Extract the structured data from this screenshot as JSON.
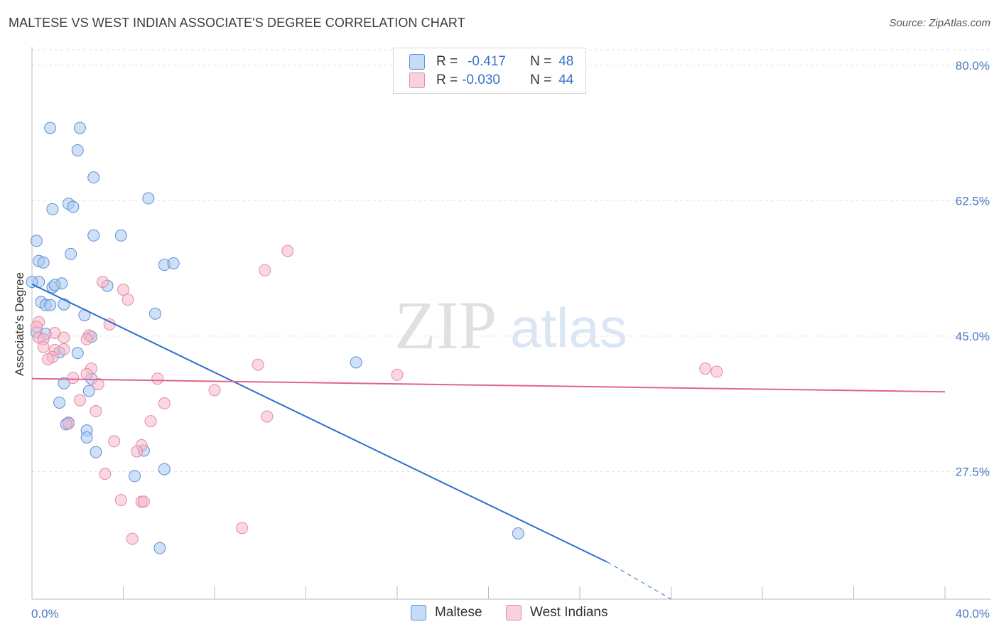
{
  "title": "MALTESE VS WEST INDIAN ASSOCIATE'S DEGREE CORRELATION CHART",
  "source": "Source: ZipAtlas.com",
  "watermark": {
    "zip": "ZIP",
    "atlas": "atlas"
  },
  "legend_top": {
    "rows": [
      {
        "r_label": "R =",
        "r_value": "-0.417",
        "n_label": "N =",
        "n_value": "48",
        "color": "#a9c8f0"
      },
      {
        "r_label": "R =",
        "r_value": "-0.030",
        "n_label": "N =",
        "n_value": "44",
        "color": "#f6b7c9"
      }
    ]
  },
  "legend_bottom": {
    "maltese": "Maltese",
    "west_indians": "West Indians"
  },
  "chart_data": {
    "type": "scatter",
    "title": "MALTESE VS WEST INDIAN ASSOCIATE'S DEGREE CORRELATION CHART",
    "xlabel": "",
    "ylabel": "Associate's Degree",
    "xlim": [
      0,
      40
    ],
    "ylim": [
      11,
      82
    ],
    "x_tick_labels": [
      "0.0%",
      "40.0%"
    ],
    "y_ticks": [
      27.5,
      45.0,
      62.5,
      80.0
    ],
    "y_tick_labels": [
      "27.5%",
      "45.0%",
      "62.5%",
      "80.0%"
    ],
    "grid": true,
    "legend": "top-center",
    "series": [
      {
        "name": "Maltese",
        "color": "#a9c8f0",
        "stroke": "#5b8fd6",
        "line_color": "#2f6fd0",
        "r": -0.417,
        "n": 48,
        "trend": {
          "x": [
            0.0,
            25.2
          ],
          "y": [
            51.7,
            15.8
          ],
          "dashed_to": [
            28.0,
            11.0
          ]
        },
        "points": [
          [
            0.8,
            71.9
          ],
          [
            2.1,
            71.9
          ],
          [
            2.0,
            69.0
          ],
          [
            2.7,
            65.5
          ],
          [
            1.6,
            62.1
          ],
          [
            0.9,
            61.4
          ],
          [
            5.1,
            62.8
          ],
          [
            1.8,
            61.7
          ],
          [
            2.7,
            58.0
          ],
          [
            3.9,
            58.0
          ],
          [
            0.2,
            57.3
          ],
          [
            1.7,
            55.6
          ],
          [
            0.3,
            54.7
          ],
          [
            0.5,
            54.5
          ],
          [
            5.8,
            54.2
          ],
          [
            6.2,
            54.4
          ],
          [
            0.3,
            52.0
          ],
          [
            0.0,
            52.0
          ],
          [
            1.3,
            51.8
          ],
          [
            3.3,
            51.5
          ],
          [
            0.9,
            51.3
          ],
          [
            1.0,
            51.6
          ],
          [
            0.4,
            49.4
          ],
          [
            1.4,
            49.1
          ],
          [
            0.6,
            49.0
          ],
          [
            0.8,
            49.0
          ],
          [
            2.3,
            47.7
          ],
          [
            5.4,
            47.9
          ],
          [
            0.2,
            45.5
          ],
          [
            0.6,
            45.3
          ],
          [
            2.6,
            44.9
          ],
          [
            1.2,
            42.9
          ],
          [
            2.0,
            42.8
          ],
          [
            14.2,
            41.6
          ],
          [
            2.6,
            39.5
          ],
          [
            1.4,
            38.9
          ],
          [
            2.5,
            37.9
          ],
          [
            1.2,
            36.4
          ],
          [
            1.6,
            33.8
          ],
          [
            2.4,
            32.8
          ],
          [
            2.4,
            31.9
          ],
          [
            4.9,
            30.2
          ],
          [
            2.8,
            30.0
          ],
          [
            5.8,
            27.8
          ],
          [
            4.5,
            26.9
          ],
          [
            21.3,
            19.5
          ],
          [
            5.6,
            17.6
          ],
          [
            1.5,
            33.6
          ]
        ]
      },
      {
        "name": "West Indians",
        "color": "#f6b7c9",
        "stroke": "#e58aa5",
        "line_color": "#e0648e",
        "r": -0.03,
        "n": 44,
        "trend": {
          "x": [
            0.0,
            40.0
          ],
          "y": [
            39.5,
            37.8
          ]
        },
        "points": [
          [
            11.2,
            56.0
          ],
          [
            10.2,
            53.5
          ],
          [
            3.1,
            52.0
          ],
          [
            4.0,
            51.0
          ],
          [
            4.2,
            49.7
          ],
          [
            0.3,
            46.8
          ],
          [
            3.4,
            46.5
          ],
          [
            0.2,
            46.2
          ],
          [
            1.0,
            45.4
          ],
          [
            2.5,
            45.1
          ],
          [
            1.4,
            44.8
          ],
          [
            2.4,
            44.6
          ],
          [
            0.3,
            44.8
          ],
          [
            0.5,
            44.6
          ],
          [
            0.5,
            43.6
          ],
          [
            1.0,
            43.2
          ],
          [
            1.4,
            43.3
          ],
          [
            0.9,
            42.3
          ],
          [
            0.7,
            42.0
          ],
          [
            9.9,
            41.3
          ],
          [
            2.6,
            40.8
          ],
          [
            16.0,
            40.0
          ],
          [
            29.5,
            40.8
          ],
          [
            30.0,
            40.4
          ],
          [
            2.4,
            40.1
          ],
          [
            1.8,
            39.6
          ],
          [
            5.5,
            39.5
          ],
          [
            2.9,
            38.8
          ],
          [
            8.0,
            38.0
          ],
          [
            2.1,
            36.7
          ],
          [
            5.8,
            36.3
          ],
          [
            2.8,
            35.3
          ],
          [
            10.3,
            34.6
          ],
          [
            5.2,
            34.0
          ],
          [
            1.6,
            33.7
          ],
          [
            3.6,
            31.4
          ],
          [
            4.8,
            30.9
          ],
          [
            4.6,
            30.1
          ],
          [
            3.2,
            27.2
          ],
          [
            3.9,
            23.8
          ],
          [
            4.8,
            23.6
          ],
          [
            4.9,
            23.6
          ],
          [
            9.2,
            20.2
          ],
          [
            4.4,
            18.8
          ]
        ]
      }
    ]
  }
}
